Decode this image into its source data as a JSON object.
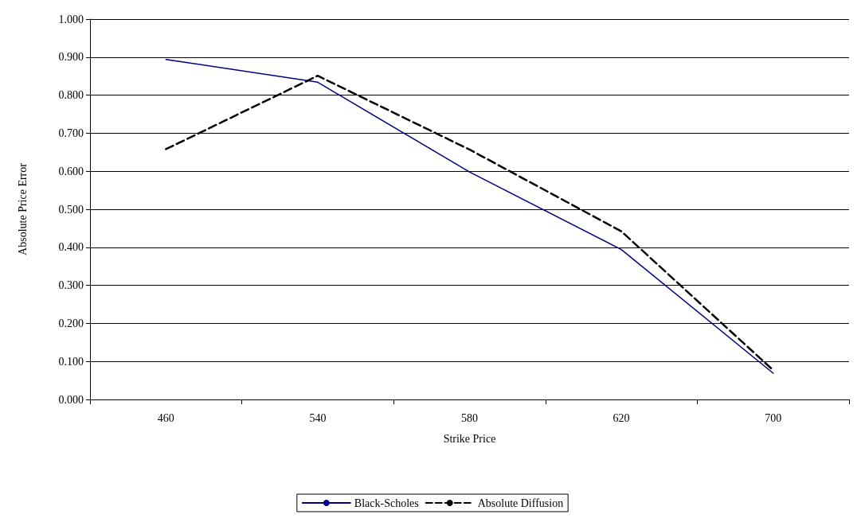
{
  "chart_data": {
    "type": "line",
    "xlabel": "Strike Price",
    "ylabel": "Absolute Price Error",
    "categories": [
      "460",
      "540",
      "580",
      "620",
      "700"
    ],
    "series": [
      {
        "name": "Black-Scholes",
        "color": "#000080",
        "line_style": "solid",
        "values": [
          0.894,
          0.834,
          0.598,
          0.394,
          0.069
        ]
      },
      {
        "name": "Absolute Diffusion",
        "color": "#000000",
        "line_style": "dashed",
        "values": [
          0.658,
          0.851,
          0.657,
          0.442,
          0.077
        ]
      }
    ],
    "ylim": [
      0,
      1
    ],
    "yticks": [
      {
        "value": 0,
        "label": "0.000"
      },
      {
        "value": 0.1,
        "label": "0.100"
      },
      {
        "value": 0.2,
        "label": "0.200"
      },
      {
        "value": 0.3,
        "label": "0.300"
      },
      {
        "value": 0.4,
        "label": "0.400"
      },
      {
        "value": 0.5,
        "label": "0.500"
      },
      {
        "value": 0.6,
        "label": "0.600"
      },
      {
        "value": 0.7,
        "label": "0.700"
      },
      {
        "value": 0.8,
        "label": "0.800"
      },
      {
        "value": 0.9,
        "label": "0.900"
      },
      {
        "value": 1,
        "label": "1.000"
      }
    ],
    "grid": "y",
    "legend": "bottom",
    "marker": "none"
  }
}
